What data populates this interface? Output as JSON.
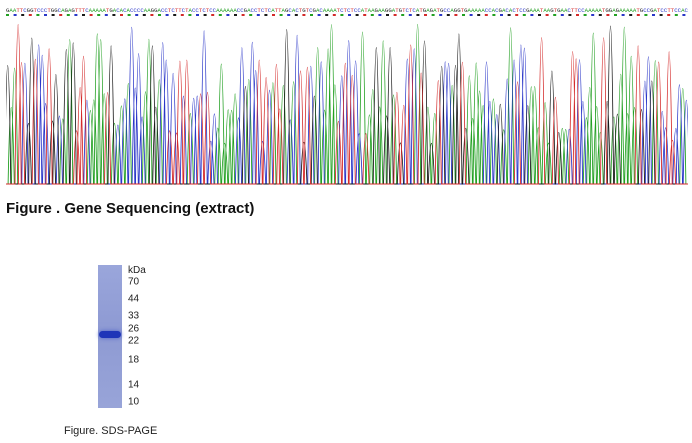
{
  "sequencing": {
    "caption": "Figure . Gene Sequencing (extract)",
    "base_colors": {
      "A": "#22a022",
      "C": "#2a36c8",
      "G": "#1a1a1a",
      "T": "#d42a2a"
    },
    "sequence": "GAATTCGGTCCCTGGCAGAGTTTCAAAAATGACACACCCCAAGGACCTCTTCTACCTCTCCAAAAAACCGACCTCTCATTAGCACTGTCGACAAAATCTCTCCATAAGAAGGATGTCTCATGAGATGCCAGGTGAAAAACCACGACACTCCGAAATAAGTGAACTTCCAAAAATGGAGAAAAATGCCGATCCTTCCAC"
  },
  "sds_page": {
    "caption": "Figure. SDS-PAGE",
    "unit_label": "kDa",
    "markers": [
      "70",
      "44",
      "33",
      "26",
      "22",
      "18",
      "14",
      "10"
    ],
    "band_near_kda": "24"
  }
}
